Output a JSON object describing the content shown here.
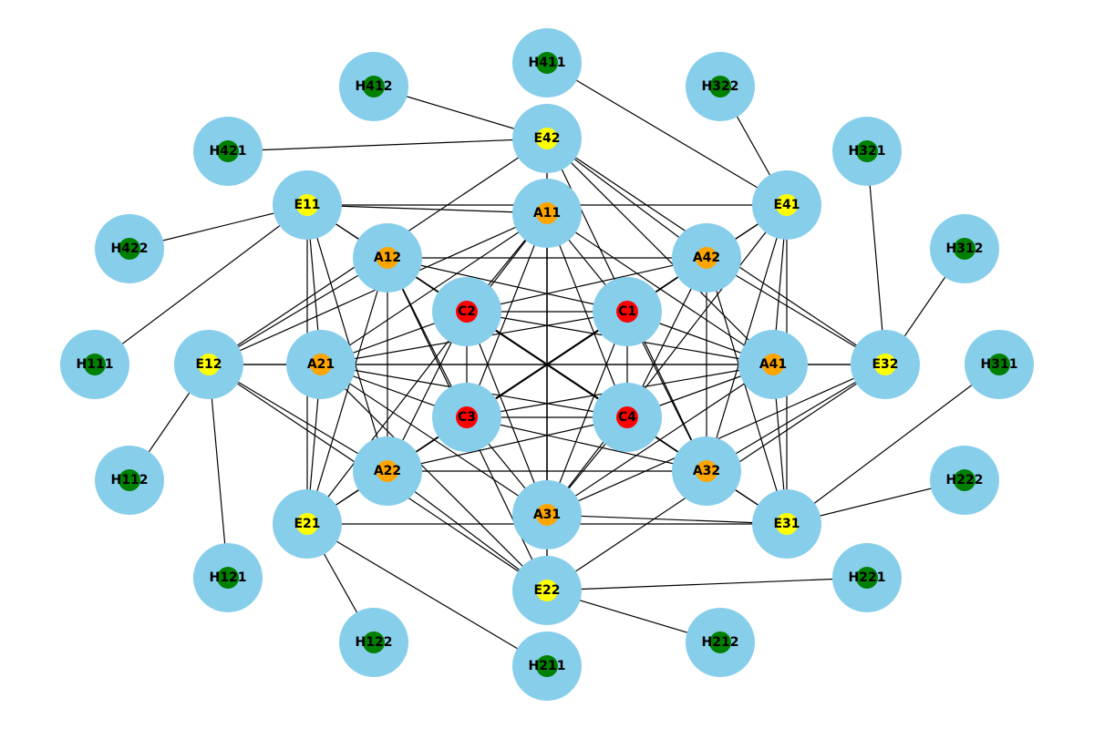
{
  "colors": {
    "node_fill": "#87CEEB",
    "edge": "#000000",
    "core": "#FF0000",
    "a": "#FFA500",
    "e": "#FFFF00",
    "h": "#008000"
  },
  "nodes": [
    {
      "id": "C1",
      "label": "C1",
      "tier": "core"
    },
    {
      "id": "C2",
      "label": "C2",
      "tier": "core"
    },
    {
      "id": "C3",
      "label": "C3",
      "tier": "core"
    },
    {
      "id": "C4",
      "label": "C4",
      "tier": "core"
    },
    {
      "id": "A11",
      "label": "A11",
      "tier": "a"
    },
    {
      "id": "A12",
      "label": "A12",
      "tier": "a"
    },
    {
      "id": "A21",
      "label": "A21",
      "tier": "a"
    },
    {
      "id": "A22",
      "label": "A22",
      "tier": "a"
    },
    {
      "id": "A31",
      "label": "A31",
      "tier": "a"
    },
    {
      "id": "A32",
      "label": "A32",
      "tier": "a"
    },
    {
      "id": "A41",
      "label": "A41",
      "tier": "a"
    },
    {
      "id": "A42",
      "label": "A42",
      "tier": "a"
    },
    {
      "id": "E11",
      "label": "E11",
      "tier": "e"
    },
    {
      "id": "E12",
      "label": "E12",
      "tier": "e"
    },
    {
      "id": "E21",
      "label": "E21",
      "tier": "e"
    },
    {
      "id": "E22",
      "label": "E22",
      "tier": "e"
    },
    {
      "id": "E31",
      "label": "E31",
      "tier": "e"
    },
    {
      "id": "E32",
      "label": "E32",
      "tier": "e"
    },
    {
      "id": "E41",
      "label": "E41",
      "tier": "e"
    },
    {
      "id": "E42",
      "label": "E42",
      "tier": "e"
    },
    {
      "id": "H111",
      "label": "H111",
      "tier": "h"
    },
    {
      "id": "H112",
      "label": "H112",
      "tier": "h"
    },
    {
      "id": "H121",
      "label": "H121",
      "tier": "h"
    },
    {
      "id": "H122",
      "label": "H122",
      "tier": "h"
    },
    {
      "id": "H211",
      "label": "H211",
      "tier": "h"
    },
    {
      "id": "H212",
      "label": "H212",
      "tier": "h"
    },
    {
      "id": "H221",
      "label": "H221",
      "tier": "h"
    },
    {
      "id": "H222",
      "label": "H222",
      "tier": "h"
    },
    {
      "id": "H311",
      "label": "H311",
      "tier": "h"
    },
    {
      "id": "H312",
      "label": "H312",
      "tier": "h"
    },
    {
      "id": "H321",
      "label": "H321",
      "tier": "h"
    },
    {
      "id": "H322",
      "label": "H322",
      "tier": "h"
    },
    {
      "id": "H411",
      "label": "H411",
      "tier": "h"
    },
    {
      "id": "H412",
      "label": "H412",
      "tier": "h"
    },
    {
      "id": "H421",
      "label": "H421",
      "tier": "h"
    },
    {
      "id": "H422",
      "label": "H422",
      "tier": "h"
    }
  ],
  "edges": [
    [
      "C1",
      "C2"
    ],
    [
      "C1",
      "C3"
    ],
    [
      "C1",
      "C4"
    ],
    [
      "C2",
      "C3"
    ],
    [
      "C2",
      "C4"
    ],
    [
      "C3",
      "C4"
    ],
    [
      "A11",
      "A21"
    ],
    [
      "A11",
      "A31"
    ],
    [
      "A11",
      "A41"
    ],
    [
      "A12",
      "A22"
    ],
    [
      "A12",
      "A32"
    ],
    [
      "A12",
      "A42"
    ],
    [
      "A21",
      "A31"
    ],
    [
      "A21",
      "A41"
    ],
    [
      "A22",
      "A32"
    ],
    [
      "A22",
      "A42"
    ],
    [
      "A31",
      "A41"
    ],
    [
      "A32",
      "A42"
    ],
    [
      "A11",
      "C1"
    ],
    [
      "A11",
      "C2"
    ],
    [
      "A11",
      "C3"
    ],
    [
      "A11",
      "C4"
    ],
    [
      "A12",
      "C1"
    ],
    [
      "A12",
      "C2"
    ],
    [
      "A12",
      "C3"
    ],
    [
      "A12",
      "C4"
    ],
    [
      "A21",
      "C1"
    ],
    [
      "A21",
      "C2"
    ],
    [
      "A21",
      "C3"
    ],
    [
      "A21",
      "C4"
    ],
    [
      "A22",
      "C1"
    ],
    [
      "A22",
      "C2"
    ],
    [
      "A22",
      "C3"
    ],
    [
      "A22",
      "C4"
    ],
    [
      "A31",
      "C1"
    ],
    [
      "A31",
      "C2"
    ],
    [
      "A31",
      "C3"
    ],
    [
      "A31",
      "C4"
    ],
    [
      "A32",
      "C1"
    ],
    [
      "A32",
      "C2"
    ],
    [
      "A32",
      "C3"
    ],
    [
      "A32",
      "C4"
    ],
    [
      "A41",
      "C1"
    ],
    [
      "A41",
      "C2"
    ],
    [
      "A41",
      "C3"
    ],
    [
      "A41",
      "C4"
    ],
    [
      "A42",
      "C1"
    ],
    [
      "A42",
      "C2"
    ],
    [
      "A42",
      "C3"
    ],
    [
      "A42",
      "C4"
    ],
    [
      "E11",
      "E21"
    ],
    [
      "E11",
      "E31"
    ],
    [
      "E11",
      "E41"
    ],
    [
      "E12",
      "E22"
    ],
    [
      "E12",
      "E32"
    ],
    [
      "E12",
      "E42"
    ],
    [
      "E21",
      "E31"
    ],
    [
      "E21",
      "E41"
    ],
    [
      "E22",
      "E32"
    ],
    [
      "E22",
      "E42"
    ],
    [
      "E31",
      "E41"
    ],
    [
      "E32",
      "E42"
    ],
    [
      "E11",
      "A11"
    ],
    [
      "E11",
      "A12"
    ],
    [
      "E11",
      "A21"
    ],
    [
      "E11",
      "A22"
    ],
    [
      "E12",
      "A11"
    ],
    [
      "E12",
      "A12"
    ],
    [
      "E12",
      "A21"
    ],
    [
      "E12",
      "A22"
    ],
    [
      "E21",
      "A11"
    ],
    [
      "E21",
      "A12"
    ],
    [
      "E21",
      "A21"
    ],
    [
      "E21",
      "A22"
    ],
    [
      "E22",
      "A11"
    ],
    [
      "E22",
      "A12"
    ],
    [
      "E22",
      "A21"
    ],
    [
      "E22",
      "A22"
    ],
    [
      "E31",
      "A31"
    ],
    [
      "E31",
      "A32"
    ],
    [
      "E31",
      "A41"
    ],
    [
      "E31",
      "A42"
    ],
    [
      "E32",
      "A31"
    ],
    [
      "E32",
      "A32"
    ],
    [
      "E32",
      "A41"
    ],
    [
      "E32",
      "A42"
    ],
    [
      "E41",
      "A31"
    ],
    [
      "E41",
      "A32"
    ],
    [
      "E41",
      "A41"
    ],
    [
      "E41",
      "A42"
    ],
    [
      "E42",
      "A31"
    ],
    [
      "E42",
      "A32"
    ],
    [
      "E42",
      "A41"
    ],
    [
      "E42",
      "A42"
    ],
    [
      "H111",
      "E11"
    ],
    [
      "H112",
      "E12"
    ],
    [
      "H121",
      "E12"
    ],
    [
      "H122",
      "E21"
    ],
    [
      "H211",
      "E21"
    ],
    [
      "H212",
      "E22"
    ],
    [
      "H221",
      "E22"
    ],
    [
      "H222",
      "E31"
    ],
    [
      "H311",
      "E31"
    ],
    [
      "H312",
      "E32"
    ],
    [
      "H321",
      "E32"
    ],
    [
      "H322",
      "E41"
    ],
    [
      "H411",
      "E41"
    ],
    [
      "H412",
      "E42"
    ],
    [
      "H421",
      "E42"
    ],
    [
      "H422",
      "E11"
    ]
  ]
}
